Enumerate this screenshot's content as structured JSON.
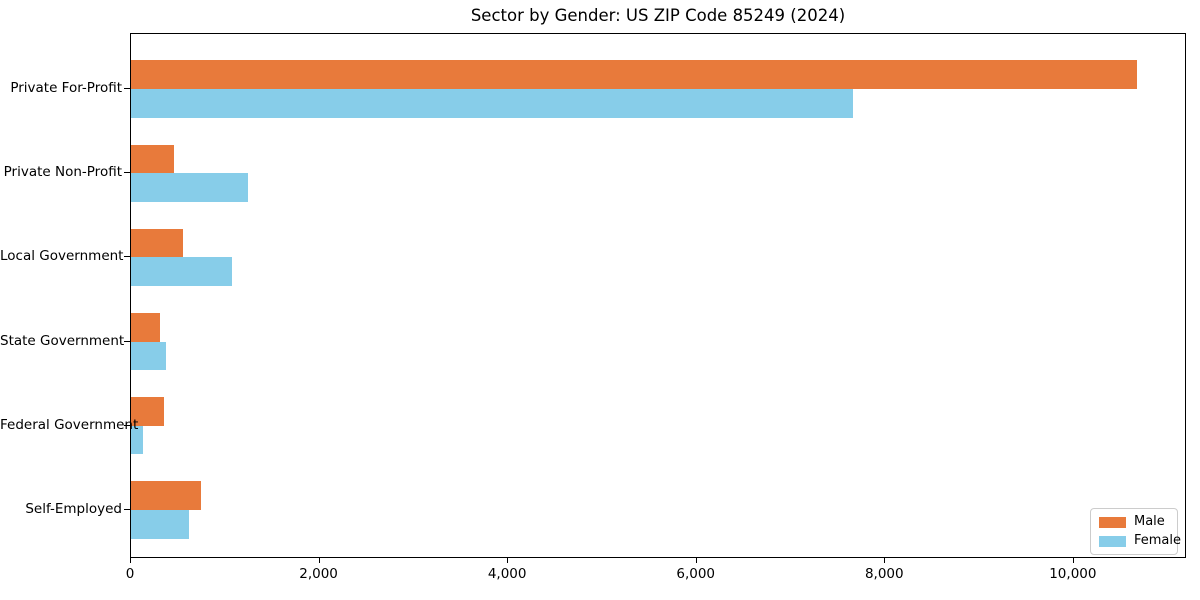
{
  "title": "Sector by Gender: US ZIP Code 85249 (2024)",
  "chart_data": {
    "type": "bar",
    "orientation": "horizontal",
    "title": "Sector by Gender: US ZIP Code 85249 (2024)",
    "categories": [
      "Private For-Profit",
      "Private Non-Profit",
      "Local Government",
      "State Government",
      "Federal Government",
      "Self-Employed"
    ],
    "series": [
      {
        "name": "Male",
        "color": "#E87A3B",
        "values": [
          10670,
          460,
          550,
          310,
          350,
          740
        ]
      },
      {
        "name": "Female",
        "color": "#87CDE9",
        "values": [
          7660,
          1240,
          1070,
          370,
          125,
          620
        ]
      }
    ],
    "xlim": [
      0,
      11200
    ],
    "xticks": [
      0,
      2000,
      4000,
      6000,
      8000,
      10000
    ],
    "xtick_labels": [
      "0",
      "2,000",
      "4,000",
      "6,000",
      "8,000",
      "10,000"
    ],
    "xlabel": "",
    "ylabel": "",
    "grid": false,
    "legend_position": "lower right"
  }
}
